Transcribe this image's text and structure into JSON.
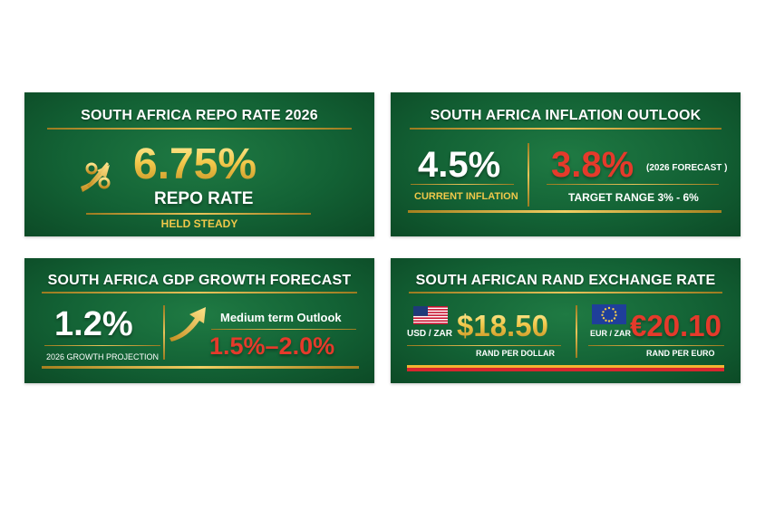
{
  "repo": {
    "title": "SOUTH AFRICA REPO RATE 2026",
    "value": "6.75%",
    "label": "REPO RATE",
    "status": "HELD STEADY",
    "icon": "percent-arrow-icon"
  },
  "inflation": {
    "title": "SOUTH AFRICA INFLATION OUTLOOK",
    "current_value": "4.5%",
    "current_label": "CURRENT INFLATION",
    "forecast_value": "3.8%",
    "forecast_note": "(2026 FORECAST )",
    "target_range": "TARGET RANGE 3% - 6%"
  },
  "gdp": {
    "title": "SOUTH AFRICA GDP GROWTH FORECAST",
    "projection_value": "1.2%",
    "projection_label": "2026 GROWTH PROJECTION",
    "outlook_label": "Medium term Outlook",
    "outlook_value": "1.5%–2.0%",
    "icon": "up-arrow-icon"
  },
  "rand": {
    "title": "SOUTH AFRICAN RAND EXCHANGE RATE",
    "usd_pair": "USD / ZAR",
    "usd_value": "$18.50",
    "usd_caption": "RAND PER DOLLAR",
    "eur_pair": "EUR / ZAR",
    "eur_value": "€20.10",
    "eur_caption": "RAND PER EURO",
    "usd_flag": "us-flag-icon",
    "eur_flag": "eu-flag-icon"
  },
  "colors": {
    "card_green": "#136235",
    "gold": "#f2c94c",
    "red": "#e53a2b"
  }
}
